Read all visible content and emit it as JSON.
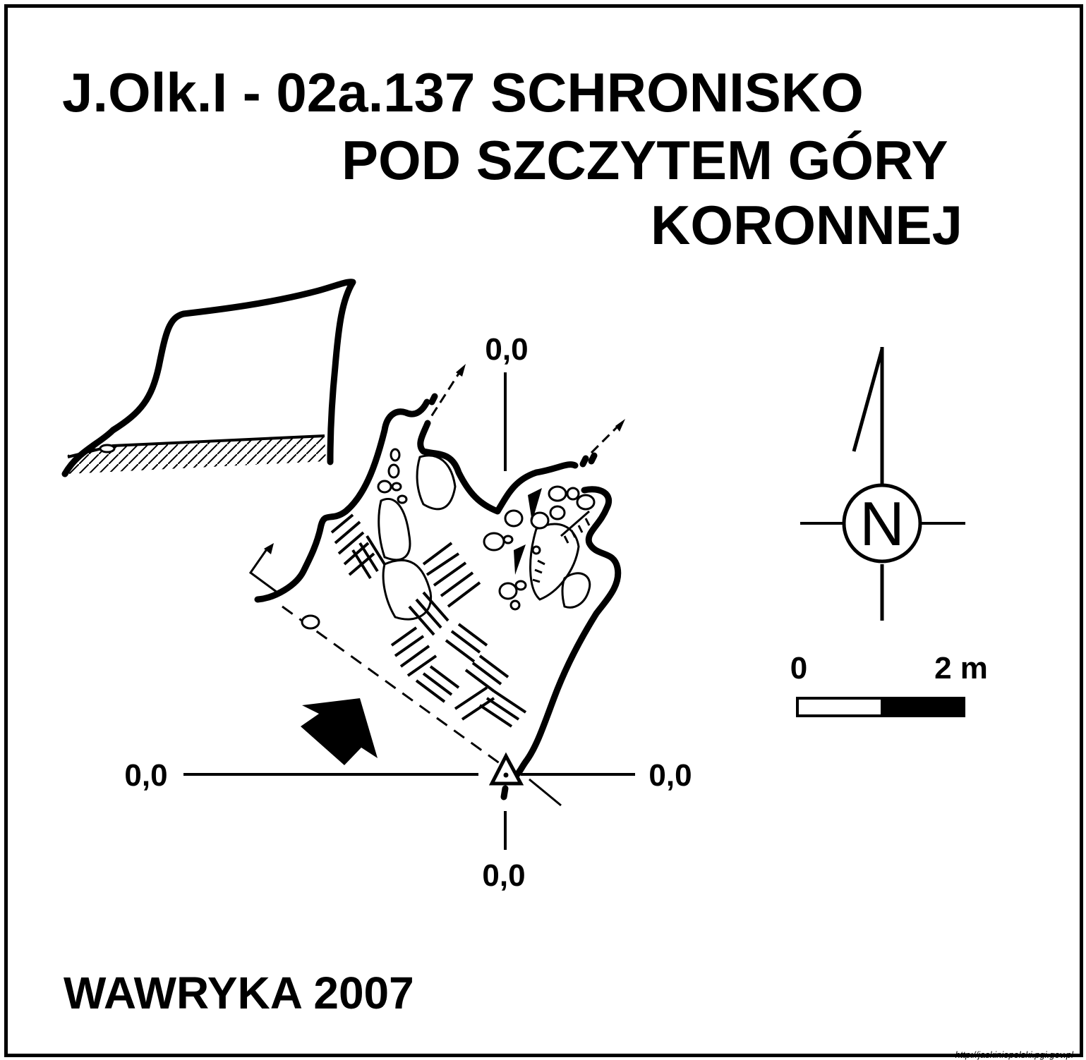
{
  "title": {
    "line1": "J.Olk.I - 02a.137  SCHRONISKO",
    "line2": "POD SZCZYTEM GÓRY",
    "line3": "KORONNEJ"
  },
  "author": "WAWRYKA 2007",
  "datum_labels": {
    "top": "0,0",
    "left": "0,0",
    "right": "0,0",
    "bottom": "0,0"
  },
  "north": "N",
  "scale": {
    "start": "0",
    "end": "2 m"
  },
  "credit": "http://jaskiniepolski.pgi.gov.pl",
  "icons": [
    "north-arrow-icon",
    "entrance-arrow-icon",
    "datum-triangle-icon",
    "scale-bar-icon"
  ]
}
